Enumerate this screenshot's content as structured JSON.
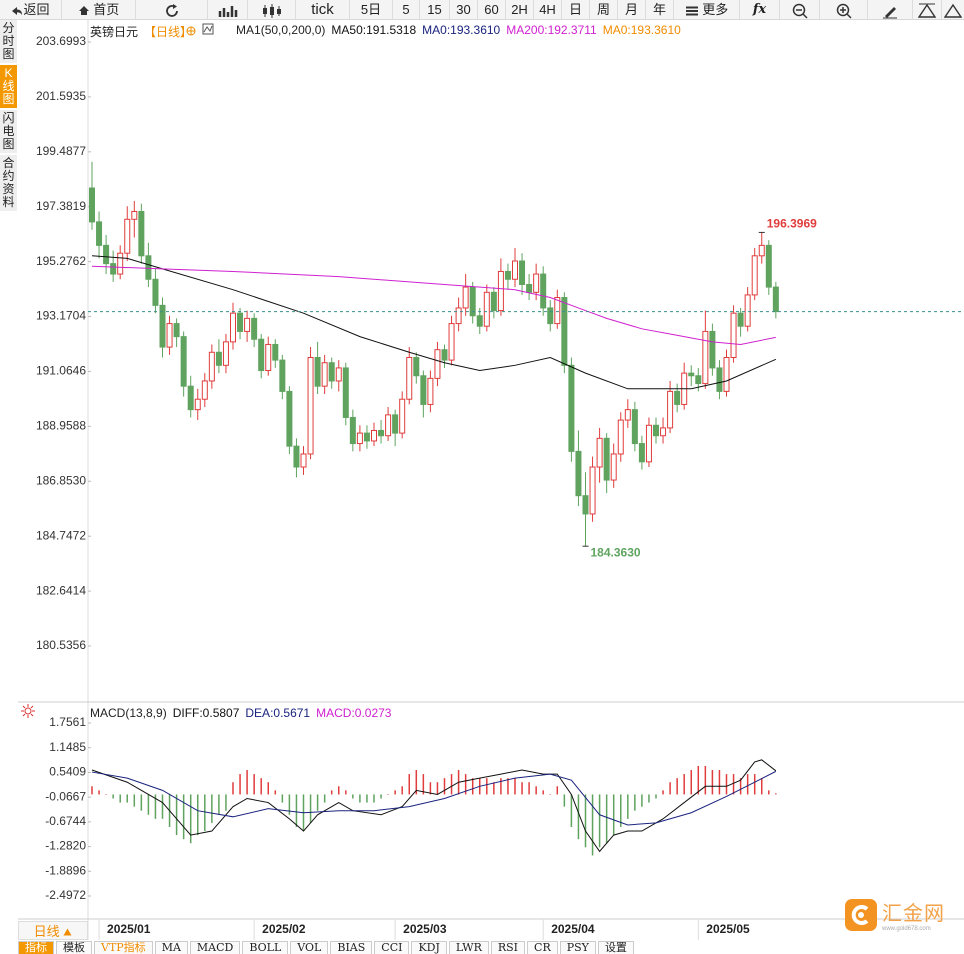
{
  "toolbar": [
    "返回",
    "首页",
    "tick",
    "5日",
    "5",
    "15",
    "30",
    "60",
    "2H",
    "4H",
    "日",
    "周",
    "月",
    "年",
    "更多",
    "fx"
  ],
  "sidebar": [
    "分时图",
    "K线图",
    "闪电图",
    "合约资料"
  ],
  "chart_data": [
    {
      "type": "candlestick",
      "title": "英镑日元",
      "period": "【日线】",
      "indicators": [
        {
          "text": "MA1(50,0,200,0)",
          "color": "#222222"
        },
        {
          "text": "MA50:191.5318",
          "color": "#111111"
        },
        {
          "text": "MA0:193.3610",
          "color": "#1a237e"
        },
        {
          "text": "MA200:192.3711",
          "color": "#d020d0"
        },
        {
          "text": "MA0:193.3610",
          "color": "#f08c00"
        }
      ],
      "categories": [
        null,
        "2025/01",
        null,
        null,
        null,
        null,
        null,
        null,
        null,
        null,
        null,
        null,
        null,
        null,
        null,
        null,
        null,
        null,
        null,
        null,
        null,
        null,
        null,
        "2025/02",
        null,
        null,
        null,
        null,
        null,
        null,
        null,
        null,
        null,
        null,
        null,
        null,
        null,
        null,
        null,
        null,
        null,
        null,
        null,
        "2025/03",
        null,
        null,
        null,
        null,
        null,
        null,
        null,
        null,
        null,
        null,
        null,
        null,
        null,
        null,
        null,
        null,
        null,
        null,
        null,
        null,
        "2025/04",
        null,
        null,
        null,
        null,
        null,
        null,
        null,
        null,
        null,
        null,
        null,
        null,
        null,
        null,
        null,
        null,
        null,
        null,
        null,
        null,
        null,
        "2025/05",
        null,
        null,
        null,
        null,
        null,
        null,
        null,
        null,
        null,
        null,
        null
      ],
      "candles": [
        [
          198.1,
          199.1,
          196.5,
          196.8
        ],
        [
          196.8,
          197.2,
          195.4,
          195.9
        ],
        [
          195.9,
          196.3,
          194.8,
          195.2
        ],
        [
          195.2,
          195.7,
          194.5,
          194.8
        ],
        [
          194.8,
          195.9,
          194.6,
          195.6
        ],
        [
          195.6,
          197.4,
          195.3,
          196.9
        ],
        [
          196.9,
          197.6,
          196.2,
          197.2
        ],
        [
          197.2,
          197.5,
          195.2,
          195.5
        ],
        [
          195.5,
          196.0,
          194.3,
          194.6
        ],
        [
          194.6,
          195.0,
          193.3,
          193.6
        ],
        [
          193.6,
          193.9,
          191.6,
          192.0
        ],
        [
          192.0,
          193.2,
          191.7,
          192.9
        ],
        [
          192.9,
          193.1,
          192.0,
          192.4
        ],
        [
          192.4,
          192.6,
          190.1,
          190.5
        ],
        [
          190.5,
          190.9,
          189.3,
          189.6
        ],
        [
          189.6,
          190.4,
          189.2,
          190.0
        ],
        [
          190.0,
          191.0,
          189.7,
          190.7
        ],
        [
          190.7,
          192.1,
          190.4,
          191.8
        ],
        [
          191.8,
          192.3,
          191.0,
          191.3
        ],
        [
          191.3,
          192.5,
          191.0,
          192.2
        ],
        [
          192.2,
          193.7,
          191.9,
          193.3
        ],
        [
          193.3,
          193.5,
          192.3,
          192.6
        ],
        [
          192.6,
          193.4,
          192.2,
          193.1
        ],
        [
          193.1,
          193.3,
          192.0,
          192.3
        ],
        [
          192.3,
          192.5,
          190.8,
          191.1
        ],
        [
          191.1,
          192.4,
          190.9,
          192.1
        ],
        [
          192.1,
          192.3,
          191.2,
          191.5
        ],
        [
          191.5,
          191.7,
          190.0,
          190.3
        ],
        [
          190.3,
          190.5,
          187.9,
          188.2
        ],
        [
          188.2,
          188.5,
          187.0,
          187.4
        ],
        [
          187.4,
          188.2,
          187.1,
          187.9
        ],
        [
          187.9,
          192.0,
          187.7,
          191.6
        ],
        [
          191.6,
          192.2,
          190.2,
          190.5
        ],
        [
          190.5,
          191.7,
          190.2,
          191.4
        ],
        [
          191.4,
          191.6,
          190.4,
          190.7
        ],
        [
          190.7,
          191.5,
          190.3,
          191.2
        ],
        [
          191.2,
          191.4,
          189.0,
          189.3
        ],
        [
          189.3,
          189.6,
          188.0,
          188.3
        ],
        [
          188.3,
          189.0,
          188.0,
          188.7
        ],
        [
          188.7,
          189.0,
          188.1,
          188.4
        ],
        [
          188.4,
          189.1,
          188.2,
          188.8
        ],
        [
          188.8,
          189.2,
          188.3,
          188.6
        ],
        [
          188.6,
          189.7,
          188.4,
          189.4
        ],
        [
          189.4,
          189.6,
          188.2,
          188.7
        ],
        [
          188.7,
          190.3,
          188.5,
          190.0
        ],
        [
          190.0,
          192.0,
          189.8,
          191.6
        ],
        [
          191.6,
          191.8,
          190.6,
          190.9
        ],
        [
          190.9,
          191.1,
          189.3,
          189.8
        ],
        [
          189.8,
          191.1,
          189.5,
          190.8
        ],
        [
          190.8,
          192.2,
          190.5,
          191.9
        ],
        [
          191.9,
          192.1,
          191.2,
          191.5
        ],
        [
          191.5,
          193.2,
          191.3,
          192.9
        ],
        [
          192.9,
          193.9,
          192.6,
          193.5
        ],
        [
          193.5,
          194.8,
          193.2,
          194.3
        ],
        [
          194.3,
          194.5,
          192.9,
          193.2
        ],
        [
          193.2,
          193.5,
          192.5,
          192.8
        ],
        [
          192.8,
          194.4,
          192.6,
          194.1
        ],
        [
          194.1,
          194.3,
          193.1,
          193.4
        ],
        [
          193.4,
          195.4,
          193.2,
          194.9
        ],
        [
          194.9,
          195.2,
          194.2,
          194.6
        ],
        [
          194.6,
          195.8,
          194.3,
          195.3
        ],
        [
          195.3,
          195.6,
          194.0,
          194.4
        ],
        [
          194.4,
          194.8,
          193.8,
          194.1
        ],
        [
          194.1,
          195.2,
          193.8,
          194.8
        ],
        [
          194.8,
          195.1,
          193.2,
          193.5
        ],
        [
          193.5,
          193.8,
          192.6,
          192.9
        ],
        [
          192.9,
          194.2,
          192.7,
          193.9
        ],
        [
          193.9,
          194.1,
          191.0,
          191.3
        ],
        [
          191.3,
          191.6,
          187.6,
          188.0
        ],
        [
          188.0,
          188.8,
          185.9,
          186.3
        ],
        [
          186.3,
          187.2,
          184.363,
          185.6
        ],
        [
          185.6,
          187.8,
          185.3,
          187.4
        ],
        [
          187.4,
          188.9,
          186.8,
          188.5
        ],
        [
          188.5,
          188.7,
          186.4,
          186.9
        ],
        [
          186.9,
          188.3,
          186.6,
          187.9
        ],
        [
          187.9,
          189.5,
          187.6,
          189.2
        ],
        [
          189.2,
          190.0,
          188.9,
          189.6
        ],
        [
          189.6,
          189.9,
          188.0,
          188.3
        ],
        [
          188.3,
          188.6,
          187.3,
          187.6
        ],
        [
          187.6,
          189.3,
          187.4,
          189.0
        ],
        [
          189.0,
          189.3,
          188.3,
          188.6
        ],
        [
          188.6,
          189.3,
          188.3,
          188.9
        ],
        [
          188.9,
          190.7,
          188.7,
          190.3
        ],
        [
          190.3,
          190.6,
          189.5,
          189.8
        ],
        [
          189.8,
          191.4,
          189.6,
          191.0
        ],
        [
          191.0,
          191.3,
          190.5,
          190.9
        ],
        [
          190.9,
          191.2,
          190.3,
          190.6
        ],
        [
          190.6,
          193.4,
          190.4,
          192.6
        ],
        [
          192.6,
          192.9,
          190.9,
          191.2
        ],
        [
          191.2,
          191.5,
          190.0,
          190.3
        ],
        [
          190.3,
          191.9,
          190.1,
          191.6
        ],
        [
          191.6,
          193.6,
          191.4,
          193.3
        ],
        [
          193.3,
          193.5,
          192.4,
          192.8
        ],
        [
          192.8,
          194.3,
          192.6,
          194.0
        ],
        [
          194.0,
          195.8,
          193.8,
          195.5
        ],
        [
          195.5,
          196.3969,
          195.2,
          195.9
        ],
        [
          195.9,
          196.1,
          194.0,
          194.3
        ],
        [
          194.3,
          194.5,
          193.1,
          193.361
        ]
      ],
      "up_color": "#e03c3c",
      "down_color": "#5fa35f",
      "series": [
        {
          "color": "#111111",
          "x": [
            0,
            5,
            10,
            20,
            30,
            38,
            45,
            50,
            55,
            60,
            65,
            70,
            76,
            85,
            90,
            97
          ],
          "values": [
            195.5,
            195.4,
            195.0,
            194.2,
            193.3,
            192.4,
            191.8,
            191.4,
            191.1,
            191.3,
            191.6,
            191.0,
            190.4,
            190.4,
            190.7,
            191.5318
          ]
        },
        {
          "color": "#d020d0",
          "x": [
            0,
            10,
            20,
            35,
            50,
            60,
            65,
            70,
            73,
            78,
            82,
            88,
            92,
            97
          ],
          "values": [
            195.1,
            195.0,
            194.9,
            194.7,
            194.4,
            194.2,
            193.9,
            193.4,
            193.1,
            192.7,
            192.5,
            192.2,
            192.1,
            192.3711
          ]
        }
      ],
      "annotations": [
        {
          "x": 95,
          "value": 196.3969,
          "color": "#e03c3c"
        },
        {
          "x": 70,
          "value": 184.363,
          "label": "184.3630",
          "color": "#5fa35f"
        }
      ],
      "ylim": [
        178.465,
        204.543
      ],
      "yticks": [
        203.6993,
        201.5935,
        199.4877,
        197.3819,
        195.2762,
        193.1704,
        191.0646,
        188.9588,
        {
          "value": 186.853,
          "label": "186.8530"
        },
        184.7472,
        182.6414,
        180.5356
      ]
    },
    {
      "type": "macd",
      "title": "MACD(13,8,9)",
      "indicators": [
        {
          "text": "DIFF:0.5807",
          "color": "#111111"
        },
        {
          "text": "DEA:0.5671",
          "color": "#1a237e"
        },
        {
          "text": "MACD:0.0273",
          "color": "#d020d0"
        }
      ],
      "series": [
        {
          "color": "#111111",
          "x": [
            0,
            5,
            10,
            13,
            14,
            17,
            20,
            22,
            25,
            28,
            30,
            32,
            35,
            37,
            41,
            44,
            46,
            49,
            52,
            55,
            58,
            61,
            64,
            66,
            68,
            70,
            72,
            74,
            76,
            78,
            81,
            84,
            87,
            90,
            92,
            94,
            95,
            97
          ],
          "values": [
            0.6,
            0.3,
            -0.2,
            -0.8,
            -1.0,
            -0.9,
            -0.3,
            -0.1,
            -0.2,
            -0.6,
            -0.9,
            -0.5,
            -0.2,
            -0.4,
            -0.5,
            -0.3,
            0.1,
            0.0,
            0.3,
            0.4,
            0.5,
            0.6,
            0.5,
            0.5,
            0.0,
            -0.9,
            -1.4,
            -1.0,
            -0.9,
            -0.9,
            -0.6,
            -0.2,
            0.2,
            0.2,
            0.35,
            0.8,
            0.85,
            0.5807
          ]
        },
        {
          "color": "#1a237e",
          "x": [
            0,
            5,
            10,
            15,
            20,
            25,
            30,
            35,
            40,
            45,
            50,
            55,
            60,
            65,
            68,
            72,
            76,
            80,
            85,
            90,
            94,
            97
          ],
          "values": [
            0.55,
            0.4,
            0.1,
            -0.4,
            -0.55,
            -0.35,
            -0.45,
            -0.4,
            -0.4,
            -0.3,
            -0.1,
            0.2,
            0.4,
            0.5,
            0.35,
            -0.5,
            -0.75,
            -0.7,
            -0.45,
            -0.05,
            0.3,
            0.5671
          ]
        }
      ],
      "histogram": [
        0.2,
        0.1,
        0.0,
        -0.1,
        -0.2,
        -0.2,
        -0.3,
        -0.4,
        -0.5,
        -0.6,
        -0.6,
        -0.8,
        -1.0,
        -1.1,
        -1.2,
        -1.0,
        -0.9,
        -0.7,
        -0.5,
        -0.4,
        0.3,
        0.5,
        0.6,
        0.5,
        0.4,
        0.3,
        0.1,
        -0.2,
        -0.5,
        -0.8,
        -0.9,
        -0.7,
        -0.4,
        -0.2,
        0.1,
        0.2,
        0.1,
        -0.1,
        -0.2,
        -0.2,
        -0.2,
        -0.1,
        0.0,
        0.1,
        0.2,
        0.5,
        0.6,
        0.5,
        0.3,
        0.3,
        0.4,
        0.5,
        0.6,
        0.5,
        0.4,
        0.4,
        0.4,
        0.3,
        0.4,
        0.4,
        0.4,
        0.3,
        0.3,
        0.2,
        0.1,
        0.0,
        0.2,
        -0.3,
        -0.8,
        -1.1,
        -1.3,
        -1.5,
        -1.3,
        -1.2,
        -1.0,
        -0.8,
        -0.6,
        -0.4,
        -0.3,
        -0.2,
        -0.1,
        0.1,
        0.3,
        0.4,
        0.5,
        0.6,
        0.7,
        0.7,
        0.6,
        0.6,
        0.5,
        0.5,
        0.4,
        0.5,
        0.5,
        0.4,
        0.1,
        0.0273
      ],
      "up_color": "#e03c3c",
      "down_color": "#5fa35f",
      "ylim": [
        -3.038,
        2.248
      ],
      "yticks": [
        1.7561,
        1.1485,
        0.5409,
        -0.0667,
        -0.6744,
        {
          "value": -1.282,
          "label": "-1.2820"
        },
        -1.8896,
        -2.4972
      ]
    }
  ],
  "period_tab": "日线",
  "bottom_tabs": [
    "指标",
    "模板",
    "VTP指标",
    "MA",
    "MACD",
    "BOLL",
    "VOL",
    "BIAS",
    "CCI",
    "KDJ",
    "LWR",
    "RSI",
    "CR",
    "PSY",
    "设置"
  ],
  "logo": {
    "name": "汇金网",
    "url": "www.gold678.com"
  }
}
